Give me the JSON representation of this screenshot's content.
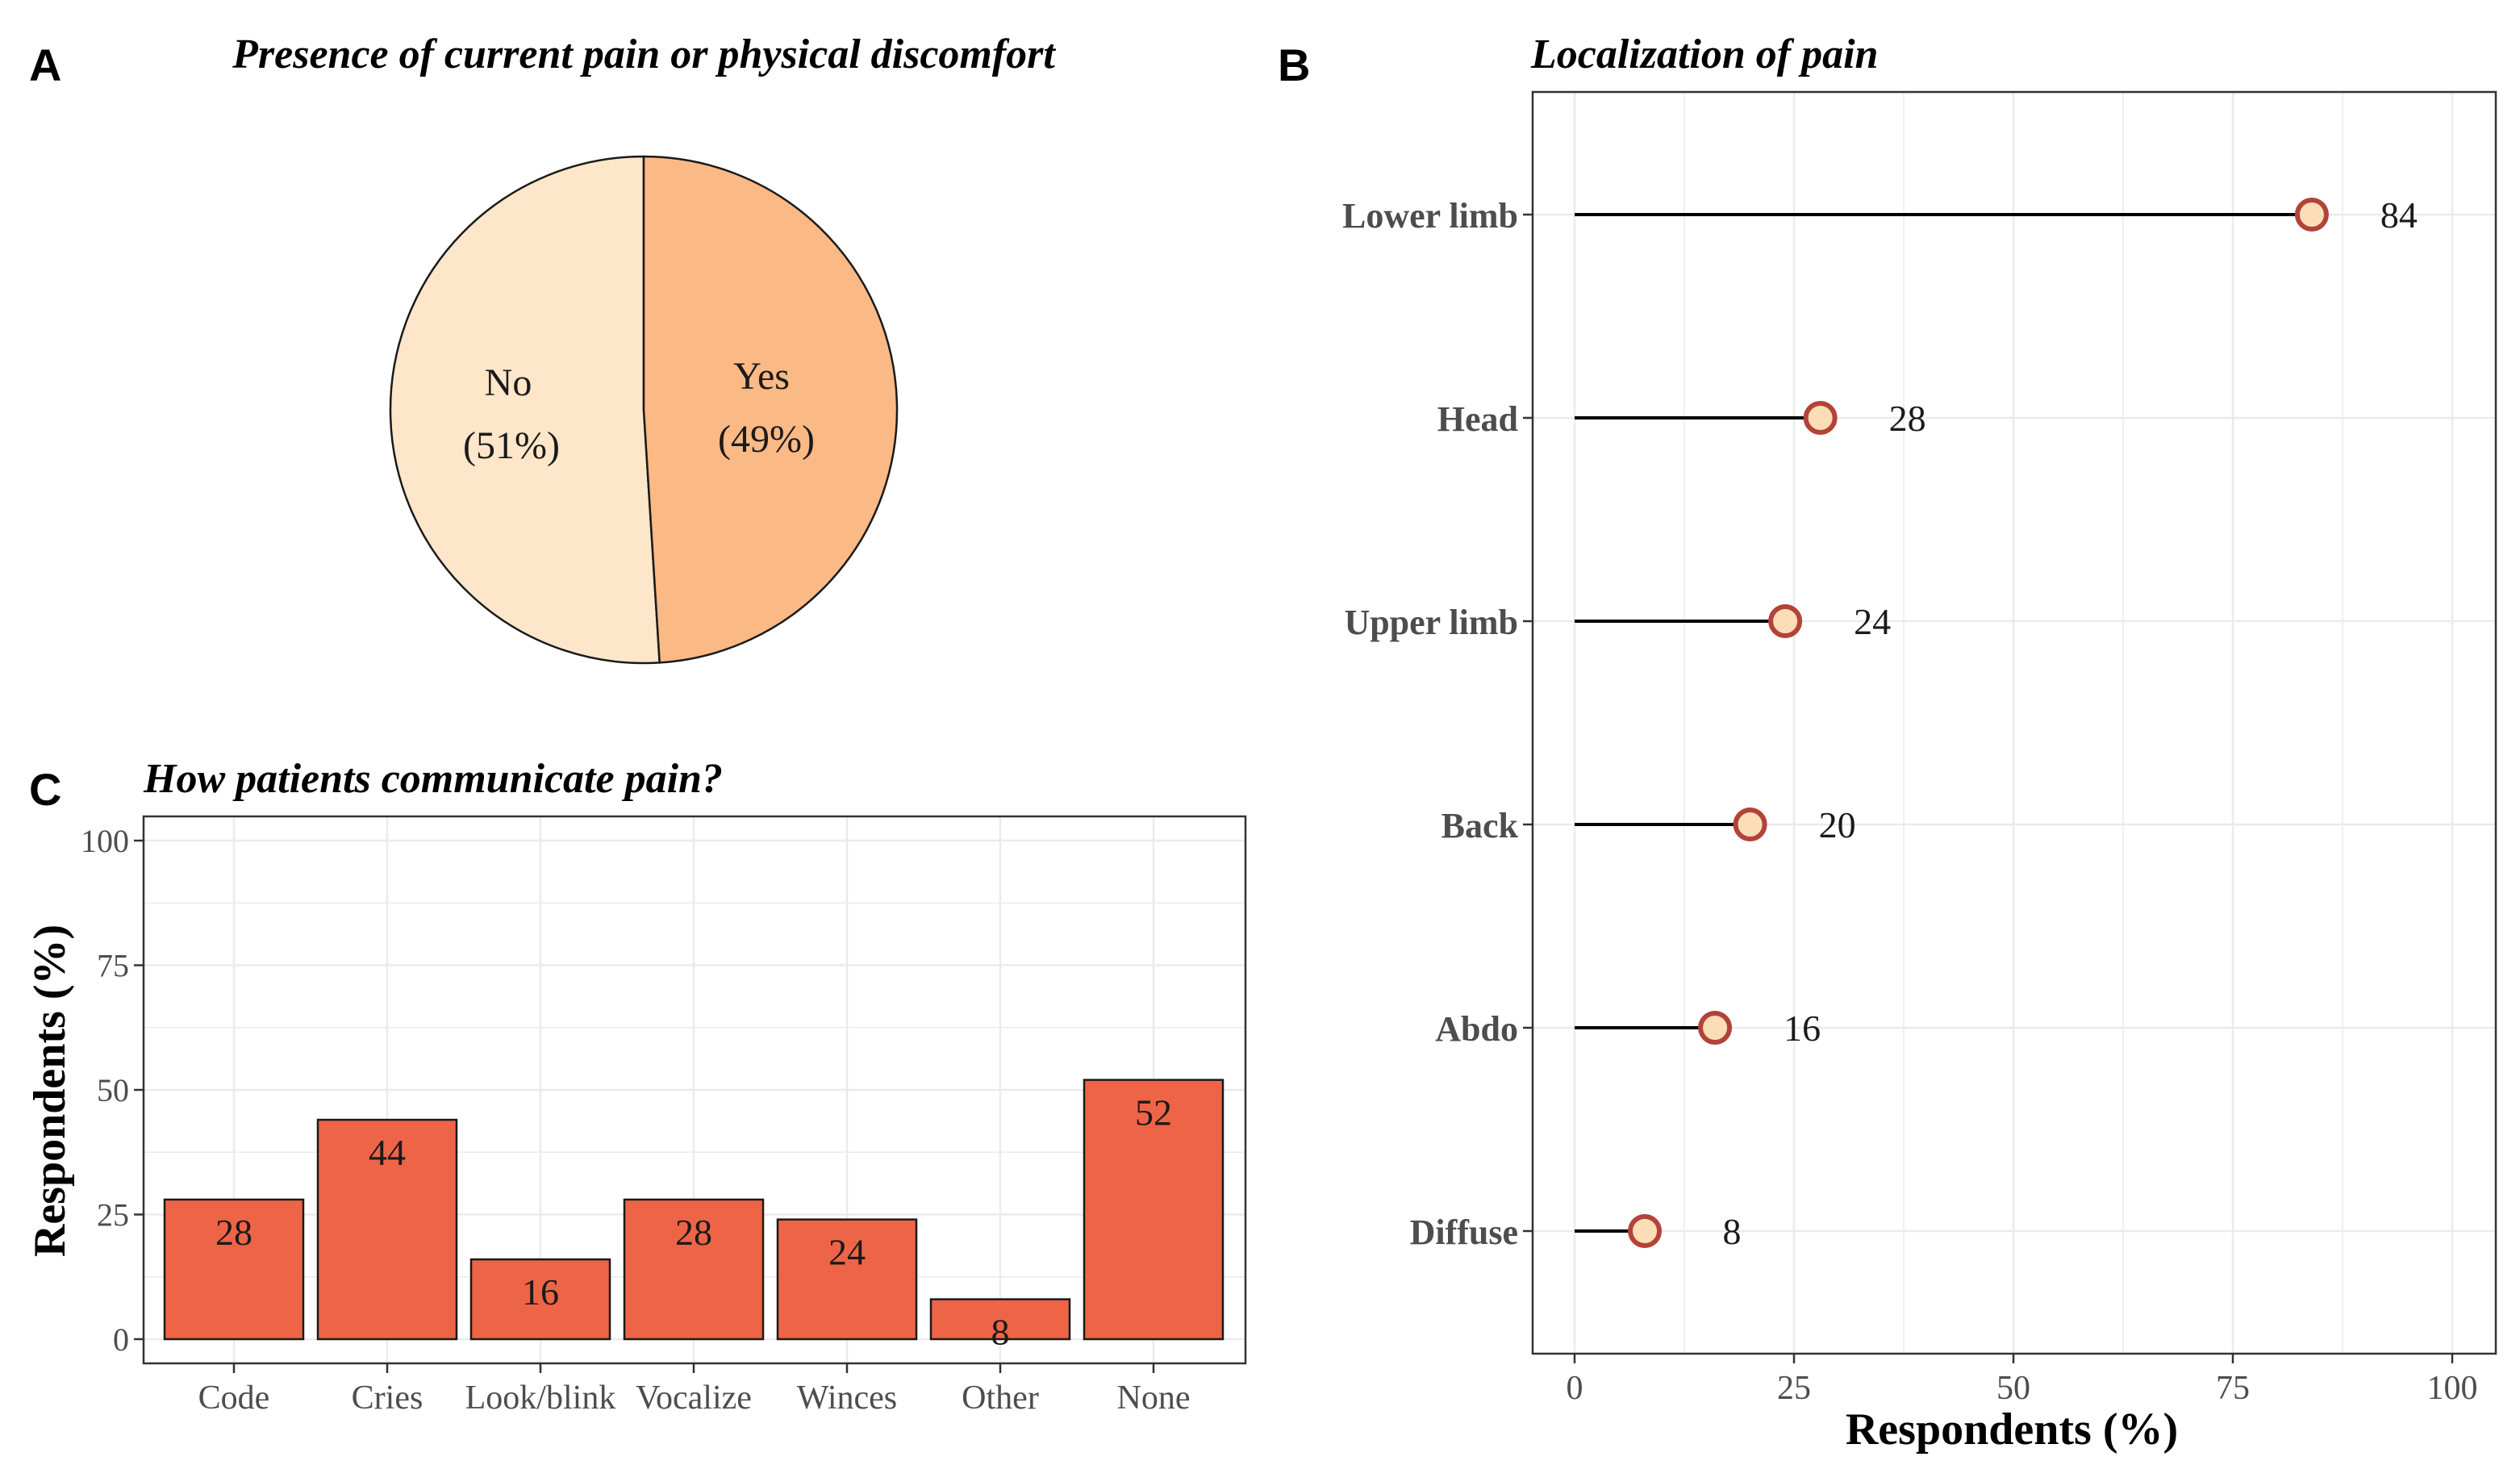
{
  "panels": {
    "a": {
      "letter": "A"
    },
    "b": {
      "letter": "B"
    },
    "c": {
      "letter": "C"
    }
  },
  "colors": {
    "pie_no": "#FDE6C9",
    "pie_yes": "#FBB985",
    "bar_fill": "#EE6446",
    "dot_fill": "#FBDDB6",
    "dot_stroke": "#B2433A",
    "grid": "#EBEBEB",
    "panel_border": "#333333"
  },
  "chart_data": [
    {
      "id": "A",
      "type": "pie",
      "title": "Presence of current pain or physical discomfort",
      "slices": [
        {
          "label": "Yes",
          "pct_label": "(49%)",
          "value": 49
        },
        {
          "label": "No",
          "pct_label": "(51%)",
          "value": 51
        }
      ]
    },
    {
      "id": "B",
      "type": "scatter",
      "subtype": "lollipop",
      "title": "Localization of pain",
      "xlabel": "Respondents (%)",
      "ylabel": "",
      "xlim": [
        0,
        100
      ],
      "xticks": [
        0,
        25,
        50,
        75,
        100
      ],
      "grid": true,
      "categories": [
        "Lower limb",
        "Head",
        "Upper limb",
        "Back",
        "Abdo",
        "Diffuse"
      ],
      "values": [
        84,
        28,
        24,
        20,
        16,
        8
      ]
    },
    {
      "id": "C",
      "type": "bar",
      "title": "How patients communicate pain?",
      "xlabel": "",
      "ylabel": "Respondents (%)",
      "ylim": [
        0,
        100
      ],
      "yticks": [
        0,
        25,
        50,
        75,
        100
      ],
      "grid": true,
      "categories": [
        "Code",
        "Cries",
        "Look/blink",
        "Vocalize",
        "Winces",
        "Other",
        "None"
      ],
      "values": [
        28,
        44,
        16,
        28,
        24,
        8,
        52
      ]
    }
  ]
}
